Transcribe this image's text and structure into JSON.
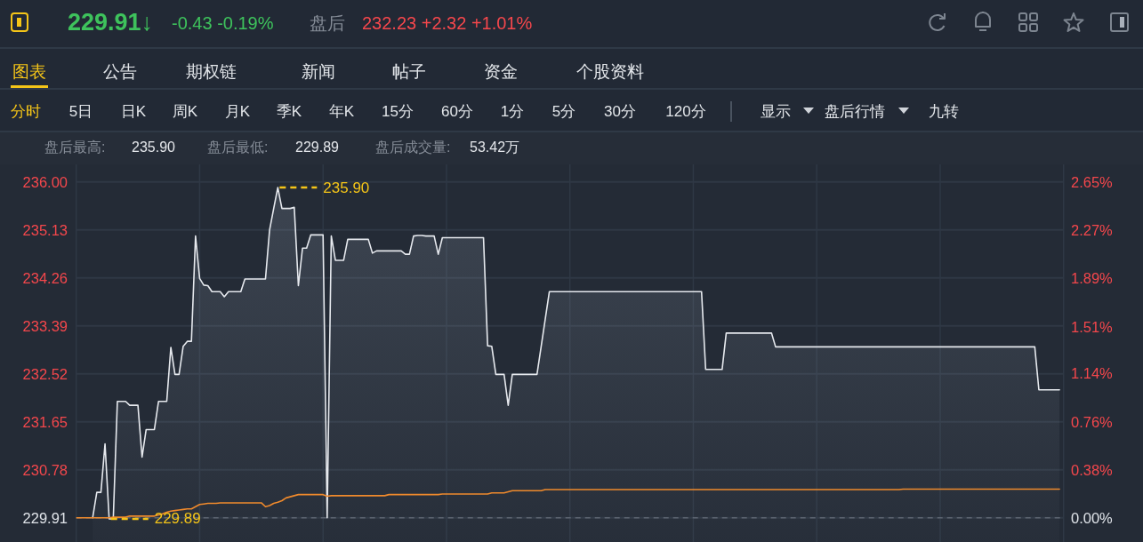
{
  "chart_data": {
    "type": "area",
    "categories": [
      null,
      null,
      null,
      null,
      null,
      null,
      null,
      null,
      null,
      null,
      null,
      null,
      null,
      null,
      null,
      null,
      null,
      null,
      null,
      null,
      null,
      null,
      null,
      null,
      null,
      null,
      null,
      null,
      null,
      null,
      null,
      null,
      null,
      null,
      null,
      null,
      null,
      null,
      null,
      null,
      null,
      null,
      null,
      null,
      null,
      null,
      null,
      null,
      null,
      null,
      null,
      null,
      null,
      null,
      null,
      null,
      null,
      null,
      null,
      null,
      null,
      null,
      null,
      null,
      null,
      null,
      null,
      null,
      null,
      null,
      null,
      null,
      null,
      null,
      null,
      null,
      null,
      null,
      null,
      null,
      null,
      null,
      null,
      null,
      null,
      null,
      null,
      null,
      null,
      null,
      null,
      null,
      null,
      null,
      null,
      null,
      null,
      null,
      null,
      null,
      null,
      null,
      null,
      null,
      null,
      null,
      null,
      null,
      null,
      null,
      null,
      null,
      null,
      null,
      null,
      null,
      null,
      null,
      null,
      null,
      null,
      null,
      null,
      null,
      null,
      null,
      null,
      null,
      null,
      null,
      null,
      null,
      null,
      null,
      null,
      null,
      null,
      null,
      null,
      null,
      null,
      null,
      null,
      null,
      null,
      null,
      null,
      null,
      null,
      null,
      null,
      null,
      null,
      null,
      null,
      null,
      null,
      null,
      null,
      null,
      null,
      null,
      null,
      null,
      null,
      null,
      null,
      null,
      null,
      null,
      null,
      null,
      null,
      null,
      null,
      null,
      null,
      null,
      null,
      null,
      null,
      null,
      null,
      null,
      null,
      null,
      null,
      null,
      null,
      null,
      null,
      null,
      null,
      null,
      null,
      null,
      null,
      null,
      null,
      null,
      null,
      null,
      null,
      null,
      null,
      null,
      null,
      null,
      null,
      null,
      null,
      null,
      null,
      null,
      null,
      null,
      null,
      null,
      null,
      null,
      null,
      null,
      null,
      null,
      null,
      null,
      null,
      null,
      null,
      null,
      null,
      null,
      null,
      null,
      null,
      null,
      null,
      null,
      null,
      null
    ],
    "series": [
      {
        "color": "#e6e9ee",
        "values": [
          null,
          null,
          null,
          null,
          229.91,
          230.37,
          230.37,
          231.25,
          229.89,
          229.89,
          232.02,
          232.02,
          232.02,
          231.95,
          231.95,
          231.95,
          231.01,
          231.51,
          231.51,
          231.51,
          232.02,
          232.02,
          232.02,
          233.0,
          232.51,
          232.51,
          233.02,
          233.11,
          233.11,
          235.02,
          234.25,
          234.13,
          234.12,
          234.01,
          234.01,
          234.01,
          233.92,
          234.01,
          234.01,
          234.01,
          234.01,
          234.24,
          234.24,
          234.24,
          234.24,
          234.24,
          234.24,
          235.13,
          235.52,
          235.9,
          235.52,
          235.52,
          235.52,
          235.54,
          234.12,
          234.8,
          234.8,
          235.04,
          235.04,
          235.04,
          235.04,
          229.91,
          235.02,
          234.58,
          234.58,
          234.58,
          234.96,
          234.96,
          234.96,
          234.96,
          234.96,
          234.96,
          234.71,
          234.75,
          234.75,
          234.75,
          234.75,
          234.75,
          234.75,
          234.75,
          234.69,
          234.69,
          235.02,
          235.03,
          235.03,
          235.02,
          235.02,
          235.02,
          234.69,
          234.99,
          234.99,
          234.99,
          234.99,
          234.99,
          234.99,
          234.99,
          234.99,
          234.99,
          234.99,
          234.99,
          233.03,
          233.02,
          232.51,
          232.51,
          232.51,
          231.95,
          232.51,
          232.51,
          232.51,
          232.51,
          232.51,
          232.51,
          232.51,
          233.01,
          233.51,
          234.01,
          234.01,
          234.01,
          234.01,
          234.01,
          234.01,
          234.01,
          234.01,
          234.01,
          234.01,
          234.01,
          234.01,
          234.01,
          234.01,
          234.01,
          234.01,
          234.01,
          234.01,
          234.01,
          234.01,
          234.01,
          234.01,
          234.01,
          234.01,
          234.01,
          234.01,
          234.01,
          234.01,
          234.01,
          234.01,
          234.01,
          234.01,
          234.01,
          234.01,
          234.01,
          234.01,
          234.01,
          234.01,
          232.6,
          232.6,
          232.6,
          232.6,
          232.6,
          233.26,
          233.26,
          233.26,
          233.26,
          233.26,
          233.26,
          233.26,
          233.26,
          233.26,
          233.26,
          233.26,
          233.26,
          233.01,
          233.01,
          233.01,
          233.01,
          233.01,
          233.01,
          233.01,
          233.01,
          233.01,
          233.01,
          233.01,
          233.01,
          233.01,
          233.01,
          233.01,
          233.01,
          233.01,
          233.01,
          233.01,
          233.01,
          233.01,
          233.01,
          233.01,
          233.01,
          233.01,
          233.01,
          233.01,
          233.01,
          233.01,
          233.01,
          233.01,
          233.01,
          233.01,
          233.01,
          233.01,
          233.01,
          233.01,
          233.01,
          233.01,
          233.01,
          233.01,
          233.01,
          233.01,
          233.01,
          233.01,
          233.01,
          233.01,
          233.01,
          233.01,
          233.01,
          233.01,
          233.01,
          233.01,
          233.01,
          233.01,
          233.01,
          233.01,
          233.01,
          233.01,
          233.01,
          233.01,
          233.01,
          233.01,
          233.01,
          232.23,
          232.23,
          232.23,
          232.23,
          232.23,
          232.23
        ]
      },
      {
        "type": "line",
        "color": "#f08a2c",
        "values": [
          229.91,
          229.91,
          229.91,
          229.91,
          229.91,
          229.91,
          229.91,
          229.91,
          229.91,
          229.92,
          229.92,
          229.92,
          229.92,
          229.94,
          229.94,
          229.94,
          229.94,
          229.94,
          229.94,
          229.94,
          229.96,
          229.98,
          230.01,
          230.03,
          230.04,
          230.05,
          230.06,
          230.07,
          230.07,
          230.11,
          230.15,
          230.16,
          230.17,
          230.17,
          230.17,
          230.18,
          230.18,
          230.18,
          230.18,
          230.18,
          230.18,
          230.18,
          230.18,
          230.18,
          230.18,
          230.18,
          230.11,
          230.13,
          230.17,
          230.19,
          230.22,
          230.27,
          230.29,
          230.31,
          230.33,
          230.33,
          230.33,
          230.33,
          230.33,
          230.33,
          230.33,
          230.3,
          230.31,
          230.31,
          230.31,
          230.31,
          230.31,
          230.31,
          230.31,
          230.31,
          230.31,
          230.31,
          230.31,
          230.31,
          230.31,
          230.31,
          230.33,
          230.33,
          230.33,
          230.33,
          230.33,
          230.33,
          230.33,
          230.33,
          230.33,
          230.33,
          230.33,
          230.33,
          230.33,
          230.34,
          230.34,
          230.34,
          230.34,
          230.34,
          230.34,
          230.34,
          230.34,
          230.34,
          230.34,
          230.34,
          230.34,
          230.36,
          230.36,
          230.36,
          230.36,
          230.38,
          230.4,
          230.4,
          230.4,
          230.4,
          230.4,
          230.4,
          230.4,
          230.4,
          230.42,
          230.42,
          230.42,
          230.42,
          230.42,
          230.42,
          230.42,
          230.42,
          230.42,
          230.42,
          230.42,
          230.42,
          230.42,
          230.42,
          230.42,
          230.42,
          230.42,
          230.42,
          230.42,
          230.42,
          230.42,
          230.42,
          230.42,
          230.42,
          230.42,
          230.42,
          230.42,
          230.42,
          230.42,
          230.42,
          230.42,
          230.42,
          230.42,
          230.42,
          230.42,
          230.42,
          230.42,
          230.42,
          230.42,
          230.42,
          230.42,
          230.42,
          230.42,
          230.42,
          230.42,
          230.42,
          230.42,
          230.42,
          230.42,
          230.42,
          230.42,
          230.42,
          230.42,
          230.42,
          230.42,
          230.42,
          230.42,
          230.42,
          230.42,
          230.42,
          230.42,
          230.42,
          230.42,
          230.42,
          230.42,
          230.42,
          230.42,
          230.42,
          230.42,
          230.42,
          230.42,
          230.42,
          230.42,
          230.42,
          230.42,
          230.42,
          230.42,
          230.42,
          230.42,
          230.42,
          230.42,
          230.42,
          230.42,
          230.42,
          230.42,
          230.42,
          230.42,
          230.43,
          230.43,
          230.43,
          230.43,
          230.43,
          230.43,
          230.43,
          230.43,
          230.43,
          230.43,
          230.43,
          230.43,
          230.43,
          230.43,
          230.43,
          230.43,
          230.43,
          230.43,
          230.43,
          230.43,
          230.43,
          230.43,
          230.43,
          230.43,
          230.43,
          230.43,
          230.43,
          230.43,
          230.43,
          230.43,
          230.43,
          230.43,
          230.43,
          230.43,
          230.43,
          230.43,
          230.43,
          230.43,
          230.43
        ]
      }
    ],
    "ylim": [
      229.47,
      236.32
    ],
    "yticks": [
      229.91,
      230.78,
      231.65,
      232.52,
      233.39,
      234.26,
      235.13,
      {
        "value": 236,
        "label": "236.00"
      }
    ],
    "y2lim": [
      -0.19,
      2.79
    ],
    "y2ticks": [
      {
        "value": 0,
        "label": "0.00%"
      },
      {
        "value": 0.38,
        "label": "0.38%"
      },
      {
        "value": 0.76,
        "label": "0.76%"
      },
      {
        "value": 1.14,
        "label": "1.14%"
      },
      {
        "value": 1.51,
        "label": "1.51%"
      },
      {
        "value": 1.89,
        "label": "1.89%"
      },
      {
        "value": 2.27,
        "label": "2.27%"
      },
      {
        "value": 2.65,
        "label": "2.65%"
      }
    ],
    "grid": true,
    "ref_lines": [
      {
        "axis": "y",
        "value": 229.91,
        "color": "#59616d",
        "line_style": "dashed"
      }
    ],
    "annotations": [
      "229.91↓",
      "-0.43 -0.19%",
      "盘后",
      "232.23 +2.32 +1.01%",
      "图表",
      "公告",
      "期权链",
      "新闻",
      "帖子",
      "资金",
      "个股资料",
      "分时",
      "5日",
      "日K",
      "周K",
      "月K",
      "季K",
      "年K",
      "15分",
      "60分",
      "1分",
      "5分",
      "30分",
      "120分",
      "显示",
      "盘后行情",
      "九转",
      "盘后最高:",
      "235.90",
      "盘后最低:",
      "229.89",
      "盘后成交量:",
      "53.42万",
      "235.90",
      "229.89"
    ]
  }
}
